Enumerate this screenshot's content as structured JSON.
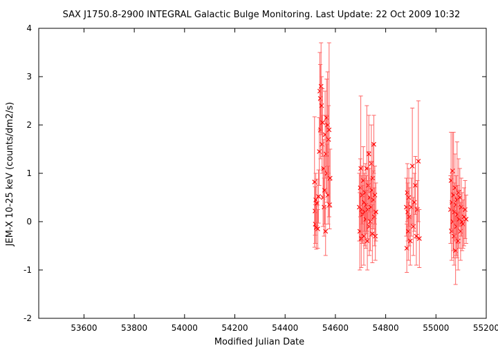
{
  "chart_data": {
    "type": "scatter",
    "title": "SAX J1750.8-2900   INTEGRAL Galactic Bulge Monitoring.  Last Update: 22 Oct 2009 10:32",
    "xlabel": "Modified Julian Date",
    "ylabel": "JEM-X 10-25 keV (counts/dm2/s)",
    "xlim": [
      53420,
      55200
    ],
    "ylim": [
      -2,
      4
    ],
    "x_ticks": [
      53600,
      53800,
      54000,
      54200,
      54400,
      54600,
      54800,
      55000,
      55200
    ],
    "y_ticks": [
      -2,
      -1,
      0,
      1,
      2,
      3,
      4
    ],
    "grid": false,
    "marker": "x",
    "error_bars": true,
    "colors": {
      "points": "#ff0000",
      "error_bars": "#ff6464"
    },
    "series": [
      {
        "points": [
          {
            "x": 54517,
            "y": 0.82,
            "err": 1.35
          },
          {
            "x": 54519,
            "y": 0.22,
            "err": 0.5
          },
          {
            "x": 54520,
            "y": -0.05,
            "err": 0.4
          },
          {
            "x": 54522,
            "y": 0.45,
            "err": 0.55
          },
          {
            "x": 54524,
            "y": -0.12,
            "err": 0.45
          },
          {
            "x": 54527,
            "y": 0.38,
            "err": 0.5
          },
          {
            "x": 54530,
            "y": -0.15,
            "err": 0.4
          },
          {
            "x": 54533,
            "y": 0.52,
            "err": 0.55
          },
          {
            "x": 54536,
            "y": 1.45,
            "err": 0.7
          },
          {
            "x": 54538,
            "y": 2.7,
            "err": 0.8
          },
          {
            "x": 54540,
            "y": 2.55,
            "err": 0.7
          },
          {
            "x": 54541,
            "y": 1.9,
            "err": 0.6
          },
          {
            "x": 54543,
            "y": 2.8,
            "err": 0.9
          },
          {
            "x": 54545,
            "y": 2.4,
            "err": 0.6
          },
          {
            "x": 54547,
            "y": 1.6,
            "err": 0.6
          },
          {
            "x": 54549,
            "y": 2.05,
            "err": 0.7
          },
          {
            "x": 54551,
            "y": 0.5,
            "err": 0.6
          },
          {
            "x": 54553,
            "y": 1.1,
            "err": 0.6
          },
          {
            "x": 54555,
            "y": 0.3,
            "err": 0.6
          },
          {
            "x": 54557,
            "y": 0.65,
            "err": 0.7
          },
          {
            "x": 54559,
            "y": 1.8,
            "err": 0.9
          },
          {
            "x": 54561,
            "y": -0.2,
            "err": 0.5
          },
          {
            "x": 54563,
            "y": 1.4,
            "err": 0.8
          },
          {
            "x": 54565,
            "y": 2.15,
            "err": 0.8
          },
          {
            "x": 54567,
            "y": 1.0,
            "err": 0.6
          },
          {
            "x": 54569,
            "y": 2.0,
            "err": 1.1
          },
          {
            "x": 54571,
            "y": 0.55,
            "err": 0.6
          },
          {
            "x": 54573,
            "y": 1.7,
            "err": 0.7
          },
          {
            "x": 54575,
            "y": 1.9,
            "err": 1.8
          },
          {
            "x": 54577,
            "y": 0.35,
            "err": 0.5
          },
          {
            "x": 54579,
            "y": 0.9,
            "err": 0.6
          },
          {
            "x": 54695,
            "y": 0.3,
            "err": 0.7
          },
          {
            "x": 54697,
            "y": -0.2,
            "err": 0.8
          },
          {
            "x": 54699,
            "y": 0.7,
            "err": 0.6
          },
          {
            "x": 54701,
            "y": 1.1,
            "err": 1.5
          },
          {
            "x": 54703,
            "y": -0.35,
            "err": 0.6
          },
          {
            "x": 54705,
            "y": 0.25,
            "err": 0.7
          },
          {
            "x": 54707,
            "y": 0.55,
            "err": 0.6
          },
          {
            "x": 54709,
            "y": 0.15,
            "err": 0.6
          },
          {
            "x": 54711,
            "y": 0.85,
            "err": 0.7
          },
          {
            "x": 54713,
            "y": -0.3,
            "err": 0.6
          },
          {
            "x": 54715,
            "y": 0.4,
            "err": 0.6
          },
          {
            "x": 54717,
            "y": 0.2,
            "err": 0.7
          },
          {
            "x": 54719,
            "y": 0.6,
            "err": 0.6
          },
          {
            "x": 54721,
            "y": 0.05,
            "err": 0.6
          },
          {
            "x": 54723,
            "y": 0.35,
            "err": 0.6
          },
          {
            "x": 54725,
            "y": 1.1,
            "err": 1.3
          },
          {
            "x": 54727,
            "y": -0.4,
            "err": 0.6
          },
          {
            "x": 54729,
            "y": 0.25,
            "err": 0.6
          },
          {
            "x": 54731,
            "y": 0.75,
            "err": 0.7
          },
          {
            "x": 54733,
            "y": 1.4,
            "err": 0.8
          },
          {
            "x": 54735,
            "y": -0.1,
            "err": 0.6
          },
          {
            "x": 54737,
            "y": 0.5,
            "err": 0.6
          },
          {
            "x": 54739,
            "y": 0.0,
            "err": 0.6
          },
          {
            "x": 54741,
            "y": 0.3,
            "err": 0.6
          },
          {
            "x": 54743,
            "y": 1.2,
            "err": 0.8
          },
          {
            "x": 54745,
            "y": 0.65,
            "err": 0.6
          },
          {
            "x": 54747,
            "y": -0.25,
            "err": 0.6
          },
          {
            "x": 54749,
            "y": 0.9,
            "err": 0.7
          },
          {
            "x": 54751,
            "y": 0.45,
            "err": 0.6
          },
          {
            "x": 54753,
            "y": 1.6,
            "err": 0.6
          },
          {
            "x": 54755,
            "y": 0.1,
            "err": 0.6
          },
          {
            "x": 54757,
            "y": 0.55,
            "err": 0.6
          },
          {
            "x": 54759,
            "y": -0.3,
            "err": 0.5
          },
          {
            "x": 54761,
            "y": 0.2,
            "err": 0.6
          },
          {
            "x": 54882,
            "y": 0.3,
            "err": 0.6
          },
          {
            "x": 54884,
            "y": -0.55,
            "err": 0.5
          },
          {
            "x": 54886,
            "y": 0.6,
            "err": 0.6
          },
          {
            "x": 54888,
            "y": 0.2,
            "err": 0.6
          },
          {
            "x": 54890,
            "y": -0.2,
            "err": 0.6
          },
          {
            "x": 54892,
            "y": 0.5,
            "err": 0.6
          },
          {
            "x": 54894,
            "y": 0.1,
            "err": 0.6
          },
          {
            "x": 54898,
            "y": -0.4,
            "err": 0.5
          },
          {
            "x": 54902,
            "y": 0.3,
            "err": 0.6
          },
          {
            "x": 54906,
            "y": 1.15,
            "err": 1.2
          },
          {
            "x": 54910,
            "y": -0.1,
            "err": 0.6
          },
          {
            "x": 54914,
            "y": 0.4,
            "err": 0.6
          },
          {
            "x": 54918,
            "y": 0.75,
            "err": 0.6
          },
          {
            "x": 54922,
            "y": -0.3,
            "err": 0.6
          },
          {
            "x": 54926,
            "y": 0.25,
            "err": 0.6
          },
          {
            "x": 54930,
            "y": 1.25,
            "err": 1.25
          },
          {
            "x": 54934,
            "y": -0.35,
            "err": 0.6
          },
          {
            "x": 55058,
            "y": 0.25,
            "err": 0.7
          },
          {
            "x": 55060,
            "y": 0.85,
            "err": 1.0
          },
          {
            "x": 55062,
            "y": -0.2,
            "err": 0.6
          },
          {
            "x": 55064,
            "y": 0.4,
            "err": 0.6
          },
          {
            "x": 55066,
            "y": 1.05,
            "err": 0.8
          },
          {
            "x": 55068,
            "y": 0.0,
            "err": 0.6
          },
          {
            "x": 55070,
            "y": 0.55,
            "err": 1.3
          },
          {
            "x": 55072,
            "y": -0.3,
            "err": 0.6
          },
          {
            "x": 55074,
            "y": 0.2,
            "err": 0.6
          },
          {
            "x": 55076,
            "y": 0.7,
            "err": 0.7
          },
          {
            "x": 55078,
            "y": -0.6,
            "err": 0.7
          },
          {
            "x": 55080,
            "y": 0.35,
            "err": 0.6
          },
          {
            "x": 55082,
            "y": -0.1,
            "err": 0.6
          },
          {
            "x": 55084,
            "y": 0.45,
            "err": 1.2
          },
          {
            "x": 55086,
            "y": 0.15,
            "err": 0.6
          },
          {
            "x": 55088,
            "y": -0.4,
            "err": 0.6
          },
          {
            "x": 55090,
            "y": 0.6,
            "err": 0.7
          },
          {
            "x": 55092,
            "y": 0.05,
            "err": 0.6
          },
          {
            "x": 55095,
            "y": 0.5,
            "err": 0.6
          },
          {
            "x": 55098,
            "y": -0.2,
            "err": 0.6
          },
          {
            "x": 55101,
            "y": 0.3,
            "err": 0.6
          },
          {
            "x": 55104,
            "y": 0.0,
            "err": 0.6
          },
          {
            "x": 55108,
            "y": -0.05,
            "err": 0.5
          },
          {
            "x": 55112,
            "y": 0.1,
            "err": 0.6
          },
          {
            "x": 55116,
            "y": 0.25,
            "err": 0.6
          },
          {
            "x": 55120,
            "y": 0.05,
            "err": 0.5
          }
        ]
      }
    ]
  }
}
